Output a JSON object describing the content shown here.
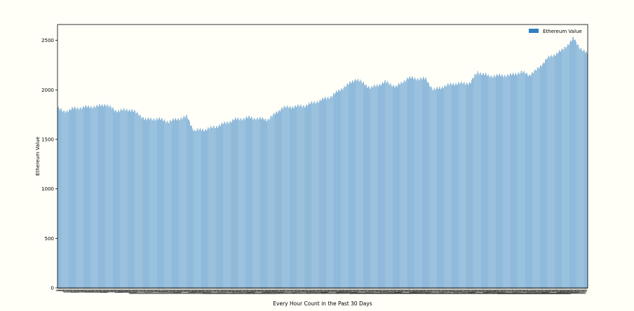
{
  "chart_data": {
    "type": "bar",
    "title": "",
    "xlabel": "Every Hour Count in the Past 30 Days",
    "ylabel": "Ethereum Value",
    "ylim": [
      0,
      2660
    ],
    "yticks": [
      0,
      500,
      1000,
      1500,
      2000,
      2500
    ],
    "grid": false,
    "legend_position": "top-right",
    "bar_count": 720,
    "series": [
      {
        "name": "Ethereum Value",
        "color": "#2f7fc1",
        "anchors": [
          [
            0,
            1820
          ],
          [
            3,
            1800
          ],
          [
            8,
            1780
          ],
          [
            20,
            1810
          ],
          [
            35,
            1825
          ],
          [
            55,
            1835
          ],
          [
            65,
            1855
          ],
          [
            78,
            1790
          ],
          [
            100,
            1800
          ],
          [
            120,
            1700
          ],
          [
            135,
            1710
          ],
          [
            150,
            1680
          ],
          [
            175,
            1730
          ],
          [
            185,
            1590
          ],
          [
            200,
            1600
          ],
          [
            215,
            1630
          ],
          [
            240,
            1700
          ],
          [
            260,
            1720
          ],
          [
            285,
            1700
          ],
          [
            305,
            1820
          ],
          [
            335,
            1840
          ],
          [
            370,
            1930
          ],
          [
            385,
            2010
          ],
          [
            405,
            2110
          ],
          [
            425,
            2020
          ],
          [
            445,
            2080
          ],
          [
            460,
            2030
          ],
          [
            475,
            2120
          ],
          [
            500,
            2110
          ],
          [
            510,
            2000
          ],
          [
            535,
            2060
          ],
          [
            560,
            2070
          ],
          [
            570,
            2180
          ],
          [
            585,
            2140
          ],
          [
            615,
            2150
          ],
          [
            630,
            2180
          ],
          [
            640,
            2150
          ],
          [
            650,
            2200
          ],
          [
            665,
            2320
          ],
          [
            685,
            2400
          ],
          [
            700,
            2520
          ],
          [
            710,
            2420
          ],
          [
            719,
            2360
          ]
        ]
      }
    ]
  }
}
